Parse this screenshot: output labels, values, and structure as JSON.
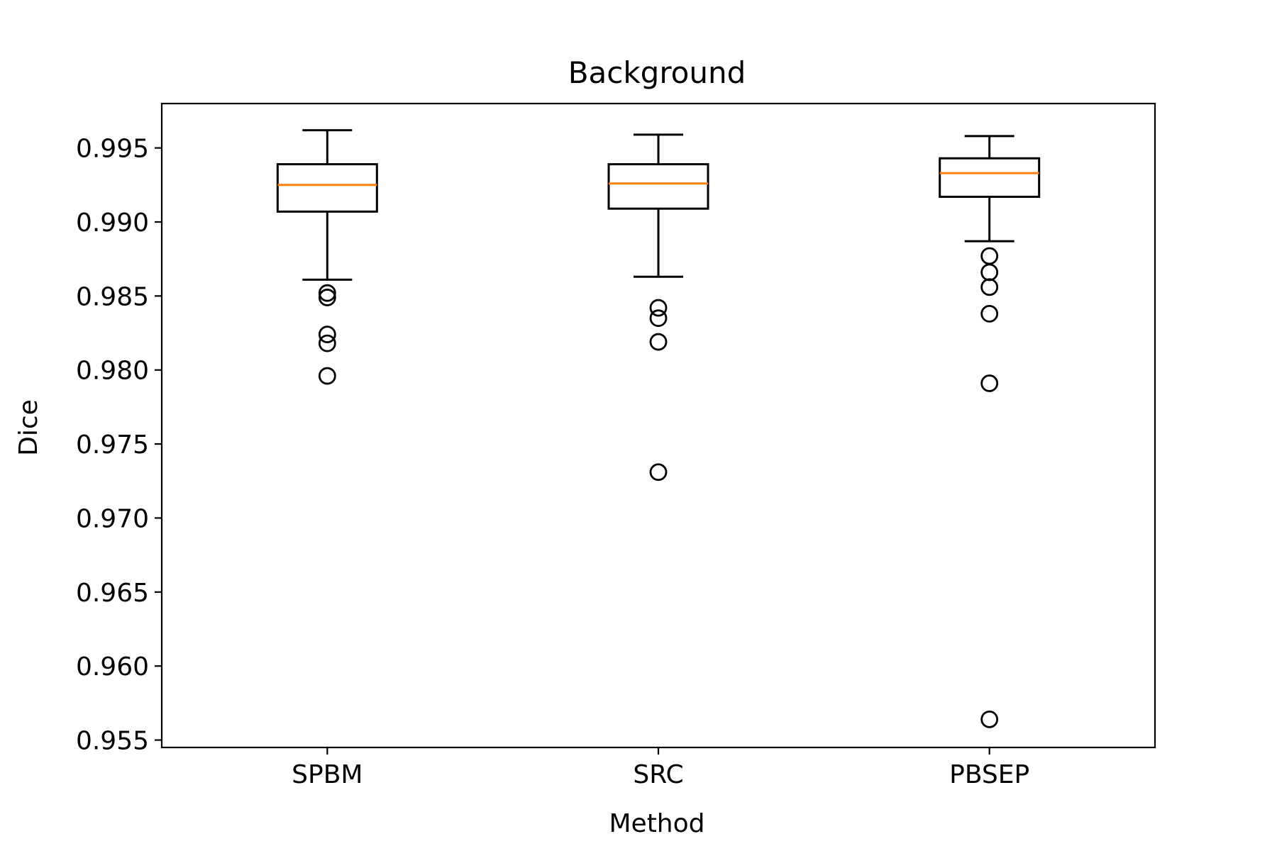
{
  "chart_data": {
    "type": "box",
    "title": "Background",
    "xlabel": "Method",
    "ylabel": "Dice",
    "ylim": [
      0.9545,
      0.998
    ],
    "yticks": [
      0.955,
      0.96,
      0.965,
      0.97,
      0.975,
      0.98,
      0.985,
      0.99,
      0.995
    ],
    "ytick_labels": [
      "0.955",
      "0.960",
      "0.965",
      "0.970",
      "0.975",
      "0.980",
      "0.985",
      "0.990",
      "0.995"
    ],
    "grid": false,
    "categories": [
      "SPBM",
      "SRC",
      "PBSEP"
    ],
    "boxes": [
      {
        "name": "SPBM",
        "whisker_low": 0.9861,
        "q1": 0.9907,
        "median": 0.9925,
        "q3": 0.9939,
        "whisker_high": 0.9962,
        "outliers": [
          0.9852,
          0.9849,
          0.9824,
          0.9818,
          0.9796
        ]
      },
      {
        "name": "SRC",
        "whisker_low": 0.9863,
        "q1": 0.9909,
        "median": 0.9926,
        "q3": 0.9939,
        "whisker_high": 0.9959,
        "outliers": [
          0.9842,
          0.9835,
          0.9819,
          0.9731
        ]
      },
      {
        "name": "PBSEP",
        "whisker_low": 0.9887,
        "q1": 0.9917,
        "median": 0.9933,
        "q3": 0.9943,
        "whisker_high": 0.9958,
        "outliers": [
          0.9877,
          0.9866,
          0.9856,
          0.9838,
          0.9791,
          0.9564
        ]
      }
    ],
    "colors": {
      "box": "#000000",
      "median": "#ff7f0e",
      "outlier": "#000000"
    }
  }
}
